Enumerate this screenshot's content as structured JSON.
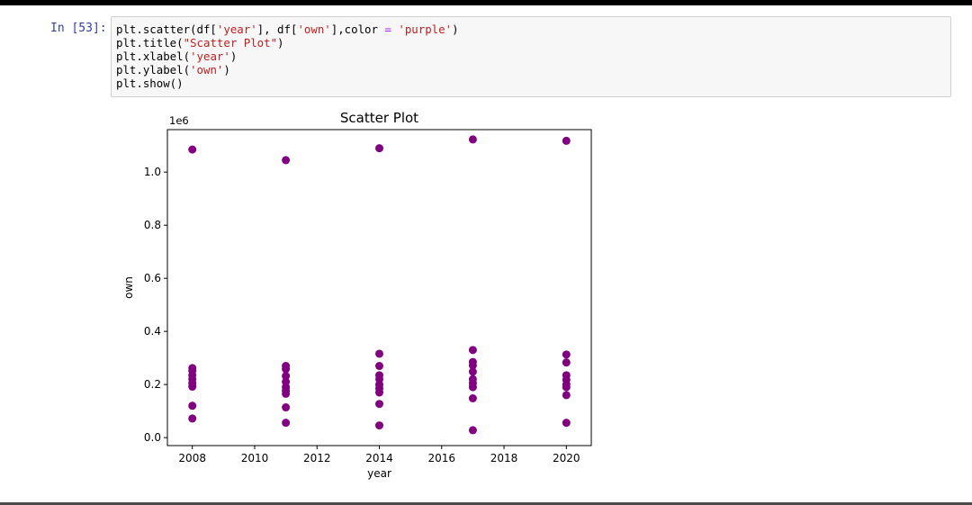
{
  "cell": {
    "prompt": "In [53]:",
    "code_lines": [
      [
        {
          "t": "plt.scatter(df["
        },
        {
          "t": "'year'",
          "c": "str"
        },
        {
          "t": "], df["
        },
        {
          "t": "'own'",
          "c": "str"
        },
        {
          "t": "],color "
        },
        {
          "t": "=",
          "c": "eq"
        },
        {
          "t": " "
        },
        {
          "t": "'purple'",
          "c": "str"
        },
        {
          "t": ")"
        }
      ],
      [
        {
          "t": "plt.title("
        },
        {
          "t": "\"Scatter Plot\"",
          "c": "str"
        },
        {
          "t": ")"
        }
      ],
      [
        {
          "t": "plt.xlabel("
        },
        {
          "t": "'year'",
          "c": "str"
        },
        {
          "t": ")"
        }
      ],
      [
        {
          "t": "plt.ylabel("
        },
        {
          "t": "'own'",
          "c": "str"
        },
        {
          "t": ")"
        }
      ],
      [
        {
          "t": "plt.show()"
        }
      ]
    ]
  },
  "chart_data": {
    "type": "scatter",
    "title": "Scatter Plot",
    "xlabel": "year",
    "ylabel": "own",
    "y_offset_label": "1e6",
    "color": "#800080",
    "xlim": [
      2007.2,
      2020.8
    ],
    "ylim": [
      -0.03,
      1.16
    ],
    "xticks": [
      2008,
      2010,
      2012,
      2014,
      2016,
      2018,
      2020
    ],
    "yticks": [
      0.0,
      0.2,
      0.4,
      0.6,
      0.8,
      1.0
    ],
    "ytick_labels": [
      "0.0",
      "0.2",
      "0.4",
      "0.6",
      "0.8",
      "1.0"
    ],
    "points": [
      [
        2008,
        1.085
      ],
      [
        2008,
        0.262
      ],
      [
        2008,
        0.252
      ],
      [
        2008,
        0.235
      ],
      [
        2008,
        0.22
      ],
      [
        2008,
        0.205
      ],
      [
        2008,
        0.192
      ],
      [
        2008,
        0.12
      ],
      [
        2008,
        0.072
      ],
      [
        2011,
        1.045
      ],
      [
        2011,
        0.27
      ],
      [
        2011,
        0.258
      ],
      [
        2011,
        0.232
      ],
      [
        2011,
        0.21
      ],
      [
        2011,
        0.19
      ],
      [
        2011,
        0.177
      ],
      [
        2011,
        0.165
      ],
      [
        2011,
        0.114
      ],
      [
        2011,
        0.056
      ],
      [
        2014,
        1.09
      ],
      [
        2014,
        0.316
      ],
      [
        2014,
        0.27
      ],
      [
        2014,
        0.235
      ],
      [
        2014,
        0.22
      ],
      [
        2014,
        0.2
      ],
      [
        2014,
        0.185
      ],
      [
        2014,
        0.17
      ],
      [
        2014,
        0.127
      ],
      [
        2014,
        0.046
      ],
      [
        2017,
        1.123
      ],
      [
        2017,
        0.33
      ],
      [
        2017,
        0.285
      ],
      [
        2017,
        0.272
      ],
      [
        2017,
        0.248
      ],
      [
        2017,
        0.22
      ],
      [
        2017,
        0.205
      ],
      [
        2017,
        0.19
      ],
      [
        2017,
        0.148
      ],
      [
        2017,
        0.028
      ],
      [
        2020,
        1.118
      ],
      [
        2020,
        0.313
      ],
      [
        2020,
        0.283
      ],
      [
        2020,
        0.235
      ],
      [
        2020,
        0.218
      ],
      [
        2020,
        0.2
      ],
      [
        2020,
        0.19
      ],
      [
        2020,
        0.16
      ],
      [
        2020,
        0.056
      ]
    ]
  }
}
